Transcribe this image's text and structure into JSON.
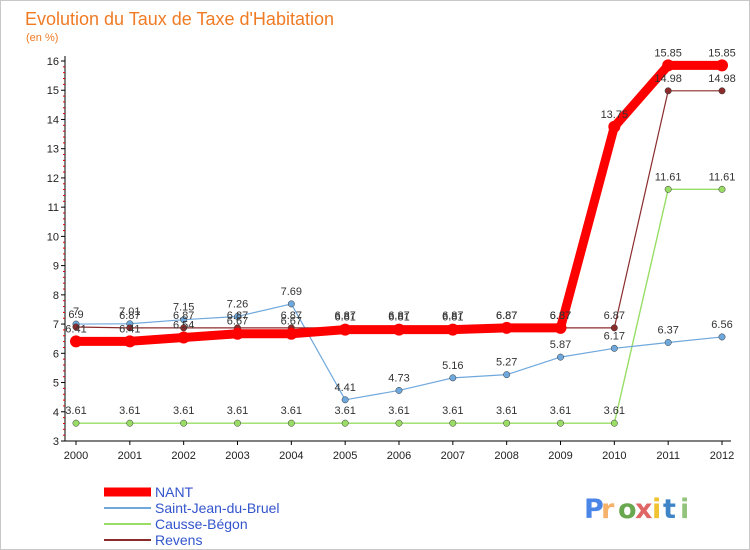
{
  "chart_data": {
    "type": "line",
    "title": "Evolution du Taux de Taxe d'Habitation",
    "subtitle": "(en %)",
    "x": [
      2000,
      2001,
      2002,
      2003,
      2004,
      2005,
      2006,
      2007,
      2008,
      2009,
      2010,
      2011,
      2012
    ],
    "ylim": [
      3,
      16
    ],
    "yticks": [
      3,
      4,
      5,
      6,
      7,
      8,
      9,
      10,
      11,
      12,
      13,
      14,
      15,
      16
    ],
    "grid": false,
    "legend_position": "bottom-left",
    "series": [
      {
        "name": "NANT",
        "color": "#ff0000",
        "values": [
          6.41,
          6.41,
          6.54,
          6.67,
          6.67,
          6.81,
          6.81,
          6.81,
          6.87,
          6.87,
          13.75,
          15.85,
          15.85
        ],
        "labels": [
          "6.41",
          "6.41",
          "6.54",
          "6.67",
          "6.67",
          "6.81",
          "6.81",
          "6.81",
          "6.87",
          "6.87",
          "13.75",
          "15.85",
          "15.85"
        ]
      },
      {
        "name": "Saint-Jean-du-Bruel",
        "color": "#6fa8dc",
        "values": [
          7,
          7.01,
          7.15,
          7.26,
          7.69,
          4.41,
          4.73,
          5.16,
          5.27,
          5.87,
          6.17,
          6.37,
          6.56
        ],
        "labels": [
          "7",
          "7.01",
          "7.15",
          "7.26",
          "7.69",
          "4.41",
          "4.73",
          "5.16",
          "5.27",
          "5.87",
          "6.17",
          "6.37",
          "6.56"
        ]
      },
      {
        "name": "Causse-Bégon",
        "color": "#99dd66",
        "values": [
          3.61,
          3.61,
          3.61,
          3.61,
          3.61,
          3.61,
          3.61,
          3.61,
          3.61,
          3.61,
          3.61,
          11.61,
          11.61
        ],
        "labels": [
          "3.61",
          "3.61",
          "3.61",
          "3.61",
          "3.61",
          "3.61",
          "3.61",
          "3.61",
          "3.61",
          "3.61",
          "3.61",
          "11.61",
          "11.61"
        ]
      },
      {
        "name": "Revens",
        "color": "#8b2c2c",
        "values": [
          6.9,
          6.87,
          6.87,
          6.87,
          6.87,
          6.87,
          6.87,
          6.87,
          6.87,
          6.87,
          6.87,
          14.98,
          14.98
        ],
        "labels": [
          "6.9",
          "6.87",
          "6.87",
          "6.87",
          "6.87",
          "6.87",
          "6.87",
          "6.87",
          "6.87",
          "6.87",
          "6.87",
          "14.98",
          "14.98"
        ]
      }
    ]
  },
  "logo": {
    "text": "Proxiti"
  }
}
